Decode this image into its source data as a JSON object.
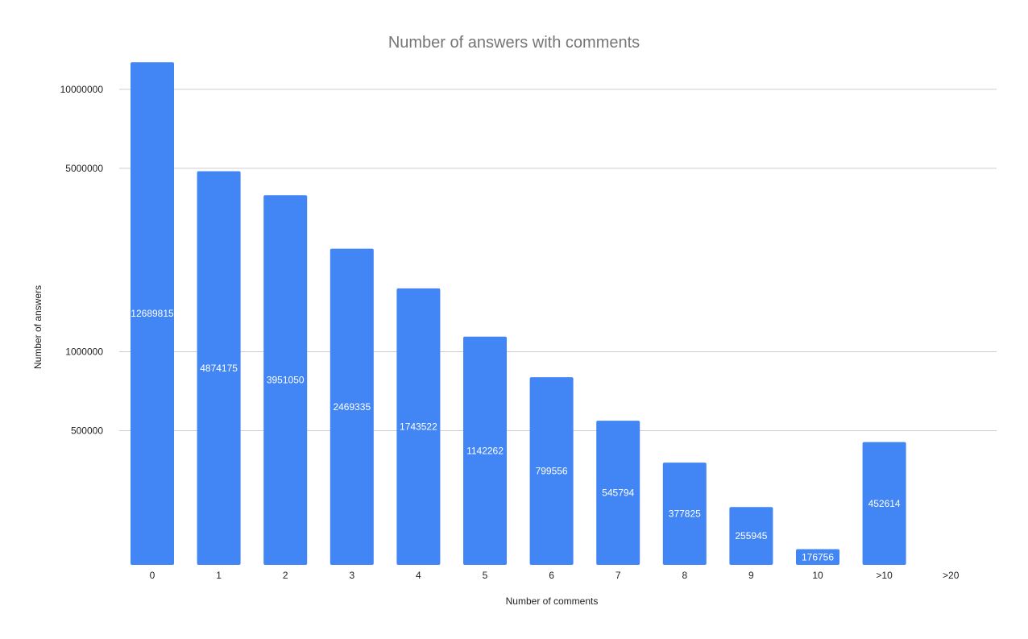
{
  "chart_data": {
    "type": "bar",
    "title": "Number of answers with comments",
    "xlabel": "Number of comments",
    "ylabel": "Number of answers",
    "scale": "log",
    "categories": [
      "0",
      "1",
      "2",
      "3",
      "4",
      "5",
      "6",
      "7",
      "8",
      "9",
      "10",
      ">10",
      ">20"
    ],
    "values": [
      12689815,
      4874175,
      3951050,
      2469335,
      1743522,
      1142262,
      799556,
      545794,
      377825,
      255945,
      176756,
      452614,
      null
    ],
    "data_labels": [
      "12689815",
      "4874175",
      "3951050",
      "2469335",
      "1743522",
      "1142262",
      "799556",
      "545794",
      "377825",
      "255945",
      "176756",
      "452614",
      ""
    ],
    "y_ticks": [
      {
        "value": 500000,
        "label": "500000"
      },
      {
        "value": 1000000,
        "label": "1000000"
      },
      {
        "value": 5000000,
        "label": "5000000"
      },
      {
        "value": 10000000,
        "label": "10000000"
      }
    ],
    "ylim": [
      176756,
      13000000
    ],
    "grid": true,
    "legend": "none",
    "colors": {
      "bar": "#4285f4",
      "grid": "#cccccc",
      "title": "#757575"
    }
  }
}
